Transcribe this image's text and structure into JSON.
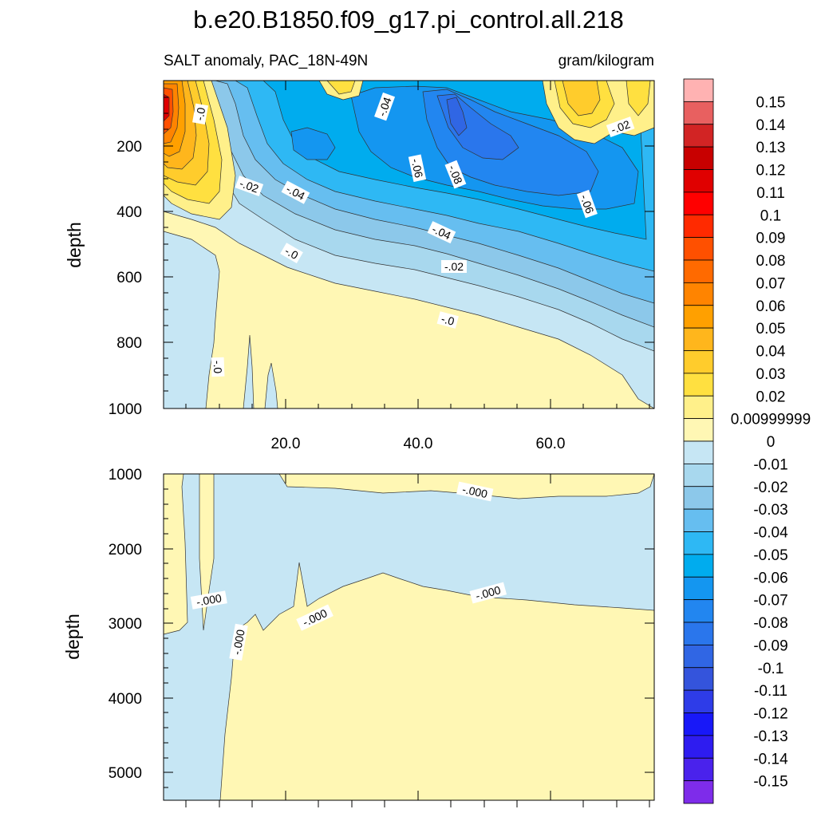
{
  "title": "b.e20.B1850.f09_g17.pi_control.all.218",
  "subtitle_left": "SALT anomaly, PAC_18N-49N",
  "subtitle_right": "gram/kilogram",
  "chart_data": [
    {
      "type": "heatmap",
      "panel": "upper",
      "ylabel": "depth",
      "y_range": [
        1000,
        0
      ],
      "x_range": [
        0,
        76
      ],
      "yticks": [
        "200",
        "400",
        "600",
        "800",
        "1000"
      ],
      "xticks": [
        "20.0",
        "40.0",
        "60.0"
      ],
      "contour_labels": [
        "-.0",
        "-.04",
        "-.02",
        "-.02",
        "-.04",
        "-.06",
        "-.08",
        "-.06",
        "-.04",
        "-.0",
        "-.02",
        "-.0",
        "-.0"
      ]
    },
    {
      "type": "heatmap",
      "panel": "lower",
      "ylabel": "depth",
      "y_range": [
        1000,
        5400
      ],
      "x_range": [
        0,
        76
      ],
      "yticks": [
        "1000",
        "2000",
        "3000",
        "4000",
        "5000"
      ],
      "contour_labels": [
        "-.000",
        "-.000",
        "-.000",
        "-.000",
        "-.000"
      ]
    }
  ],
  "colorbar": {
    "labels": [
      "0.15",
      "0.14",
      "0.13",
      "0.12",
      "0.11",
      "0.1",
      "0.09",
      "0.08",
      "0.07",
      "0.06",
      "0.05",
      "0.04",
      "0.03",
      "0.02",
      "0.00999999",
      "0",
      "-0.01",
      "-0.02",
      "-0.03",
      "-0.04",
      "-0.05",
      "-0.06",
      "-0.07",
      "-0.08",
      "-0.09",
      "-0.1",
      "-0.11",
      "-0.12",
      "-0.13",
      "-0.14",
      "-0.15"
    ],
    "colors": [
      "#FFB2B2",
      "#E86060",
      "#D22424",
      "#C80000",
      "#E00000",
      "#FF0000",
      "#FF2A00",
      "#FF5000",
      "#FF6A00",
      "#FF8400",
      "#FFA000",
      "#FFB61C",
      "#FFCC2C",
      "#FFE040",
      "#FFF08A",
      "#FFF7B4",
      "#C6E6F4",
      "#A8D8EE",
      "#8CC8EA",
      "#66BEF0",
      "#2EB8F4",
      "#00ACEE",
      "#1496F0",
      "#2286F0",
      "#2A76EC",
      "#3066E4",
      "#3454DC",
      "#2E3CE8",
      "#1818F8",
      "#2E1CF0",
      "#4A22EC",
      "#7E2CEA"
    ]
  }
}
